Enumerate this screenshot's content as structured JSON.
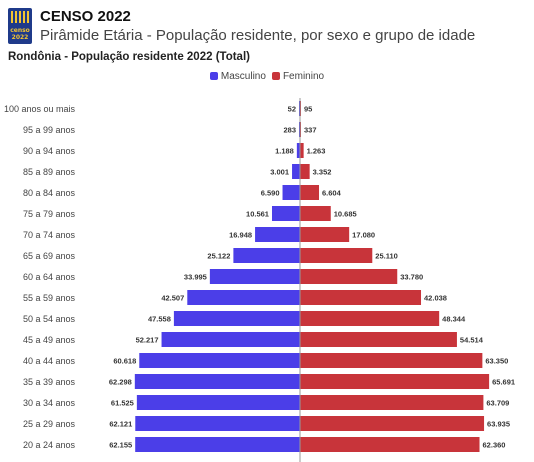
{
  "header": {
    "title": "CENSO 2022",
    "subtitle": "Pirâmide Etária - População residente, por sexo e grupo de idade",
    "logo_text": "censo 2022"
  },
  "chart_data": {
    "type": "bar",
    "orientation": "horizontal-pyramid",
    "title": "Rondônia - População residente 2022 (Total)",
    "legend_position": "top-center",
    "grid": false,
    "categories": [
      "100 anos ou mais",
      "95 a 99 anos",
      "90 a 94 anos",
      "85 a 89 anos",
      "80 a 84 anos",
      "75 a 79 anos",
      "70 a 74 anos",
      "65 a 69 anos",
      "60 a 64 anos",
      "55 a 59 anos",
      "50 a 54 anos",
      "45 a 49 anos",
      "40 a 44 anos",
      "35 a 39 anos",
      "30 a 34 anos",
      "25 a 29 anos",
      "20 a 24 anos"
    ],
    "series": [
      {
        "name": "Masculino",
        "color": "#4b3ee8",
        "values": [
          52,
          283,
          1188,
          3001,
          6590,
          10561,
          16948,
          25122,
          33995,
          42507,
          47558,
          52217,
          60618,
          62298,
          61525,
          62121,
          62155
        ],
        "labels": [
          "52",
          "283",
          "1.188",
          "3.001",
          "6.590",
          "10.561",
          "16.948",
          "25.122",
          "33.995",
          "42.507",
          "47.558",
          "52.217",
          "60.618",
          "62.298",
          "61.525",
          "62.121",
          "62.155"
        ]
      },
      {
        "name": "Feminino",
        "color": "#c8343a",
        "values": [
          95,
          337,
          1263,
          3352,
          6604,
          10685,
          17080,
          25110,
          33780,
          42038,
          48344,
          54514,
          63350,
          65691,
          63709,
          63935,
          62360
        ],
        "labels": [
          "95",
          "337",
          "1.263",
          "3.352",
          "6.604",
          "10.685",
          "17.080",
          "25.110",
          "33.780",
          "42.038",
          "48.344",
          "54.514",
          "63.350",
          "65.691",
          "63.709",
          "63.935",
          "62.360"
        ]
      }
    ]
  }
}
